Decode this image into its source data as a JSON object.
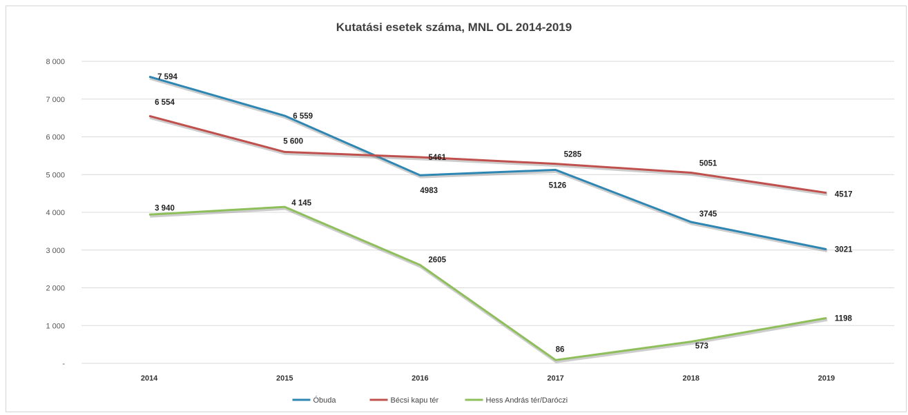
{
  "chart_data": {
    "type": "line",
    "title": "Kutatási esetek száma, MNL OL 2014-2019",
    "xlabel": "",
    "ylabel": "",
    "x": [
      "2014",
      "2015",
      "2016",
      "2017",
      "2018",
      "2019"
    ],
    "ylim": [
      0,
      8000
    ],
    "yticks": [
      0,
      1000,
      2000,
      3000,
      4000,
      5000,
      6000,
      7000,
      8000
    ],
    "ytick_labels": [
      "-",
      "1 000",
      "2 000",
      "3 000",
      "4 000",
      "5 000",
      "6 000",
      "7 000",
      "8 000"
    ],
    "grid": true,
    "legend_position": "bottom",
    "series": [
      {
        "name": "Óbuda",
        "color": "#2e86b3",
        "values": [
          7594,
          6559,
          4983,
          5126,
          3745,
          3021
        ],
        "labels": [
          "7 594",
          "6 559",
          "4983",
          "5126",
          "3745",
          "3021"
        ]
      },
      {
        "name": "Bécsi kapu tér",
        "color": "#c0504d",
        "values": [
          6554,
          5600,
          5461,
          5285,
          5051,
          4517
        ],
        "labels": [
          "6 554",
          "5 600",
          "5461",
          "5285",
          "5051",
          "4517"
        ]
      },
      {
        "name": "Hess András tér/Daróczi",
        "color": "#8fbf5a",
        "values": [
          3940,
          4145,
          2605,
          86,
          573,
          1198
        ],
        "labels": [
          "3 940",
          "4 145",
          "2605",
          "86",
          "573",
          "1198"
        ]
      }
    ]
  }
}
